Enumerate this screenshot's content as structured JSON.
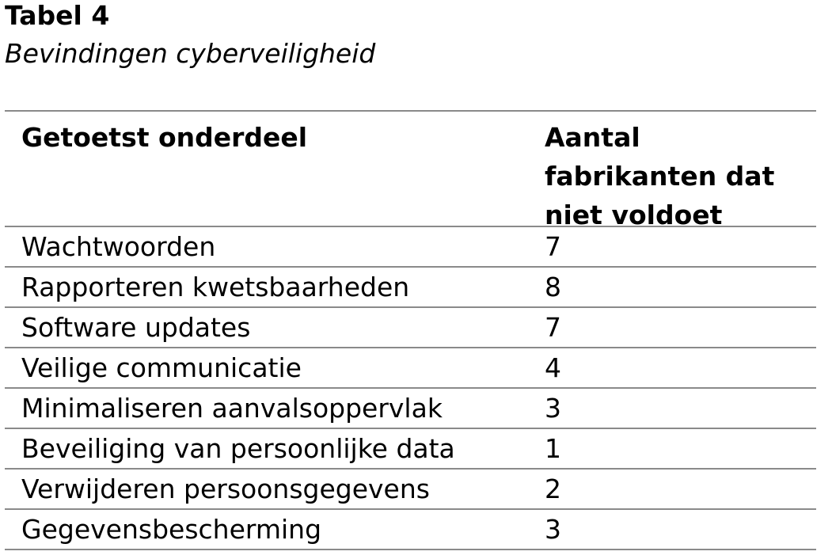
{
  "caption": {
    "label": "Tabel 4",
    "title": "Bevindingen cyberveiligheid"
  },
  "table": {
    "headers": [
      "Getoetst onderdeel",
      "Aantal fabrikanten dat niet voldoet"
    ],
    "rows": [
      [
        "Wachtwoorden",
        "7"
      ],
      [
        "Rapporteren kwetsbaarheden",
        "8"
      ],
      [
        "Software updates",
        "7"
      ],
      [
        "Veilige communicatie",
        "4"
      ],
      [
        "Minimaliseren aanvalsoppervlak",
        "3"
      ],
      [
        "Beveiliging van persoonlijke data",
        "1"
      ],
      [
        "Verwijderen persoonsgegevens",
        "2"
      ],
      [
        "Gegevensbescherming",
        "3"
      ]
    ]
  }
}
